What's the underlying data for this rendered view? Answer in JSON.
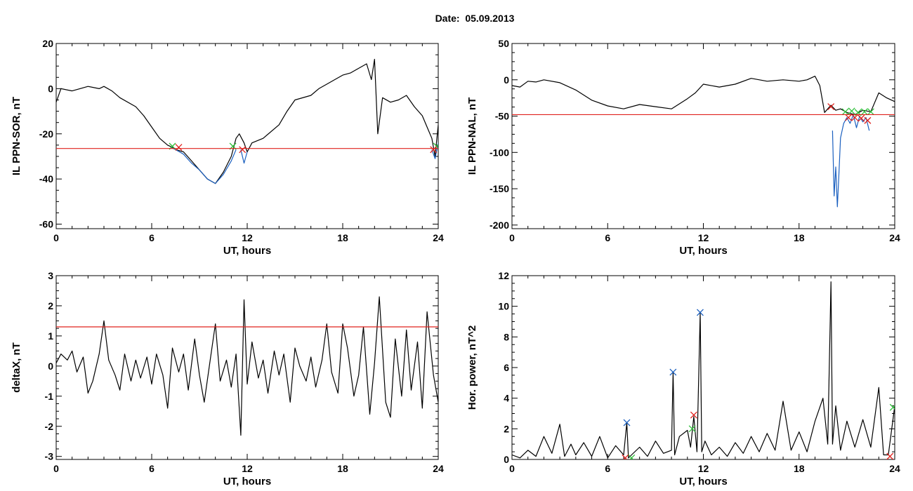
{
  "title": "Date:  05.09.2013",
  "colors": {
    "data": "#000000",
    "selected": "#1a5fbf",
    "threshold": "#e0201c",
    "marker_start": "#2fbf3a",
    "marker_end": "#e0201c",
    "peak": "#1a5fbf"
  },
  "chart_data": [
    {
      "type": "line",
      "xlabel": "UT, hours",
      "ylabel": "IL PPN-SOR, nT",
      "xlim": [
        0,
        24
      ],
      "ylim": [
        -62,
        20
      ],
      "xticks": [
        0,
        6,
        12,
        18,
        24
      ],
      "xtick_labels": [
        "0",
        "6",
        "12",
        "18",
        "24"
      ],
      "yticks": [
        20,
        0,
        -20,
        -40,
        -60
      ],
      "ytick_labels": [
        "20",
        "0",
        "-20",
        "-40",
        "-60"
      ],
      "threshold": -26.5,
      "series": [
        {
          "color_role": "data",
          "kind": "line",
          "x": [
            0,
            0.3,
            1,
            2,
            2.7,
            3,
            3.5,
            4,
            5,
            5.5,
            6,
            6.5,
            7,
            7.3,
            7.5,
            8,
            8.5,
            9,
            9.5,
            10,
            10.5,
            11,
            11.3,
            11.5,
            11.8,
            12,
            12.3,
            13,
            14,
            14.5,
            15,
            16,
            16.5,
            17,
            17.5,
            18,
            18.5,
            19,
            19.5,
            19.8,
            20,
            20.2,
            20.5,
            21,
            21.5,
            22,
            22.5,
            23,
            23.3,
            23.6,
            23.8,
            24
          ],
          "y": [
            -6,
            0,
            -1,
            1,
            0,
            1,
            -1,
            -4,
            -8,
            -12,
            -17,
            -22,
            -25,
            -26,
            -27,
            -28,
            -32,
            -36,
            -40,
            -42,
            -37,
            -30,
            -22,
            -20,
            -24,
            -28,
            -24,
            -22,
            -16,
            -10,
            -5,
            -3,
            0,
            2,
            4,
            6,
            7,
            9,
            11,
            4,
            13,
            -20,
            -4,
            -6,
            -5,
            -3,
            -8,
            -12,
            -17,
            -22,
            -30,
            -16
          ]
        },
        {
          "color_role": "selected",
          "kind": "line",
          "x": [
            7.2,
            7.5,
            8,
            8.5,
            9,
            9.5,
            10,
            10.5,
            11,
            11.3
          ],
          "y": [
            -26,
            -27,
            -29,
            -33,
            -36,
            -40,
            -42,
            -38,
            -32,
            -27
          ]
        },
        {
          "color_role": "selected",
          "kind": "line",
          "x": [
            11.6,
            11.8,
            12
          ],
          "y": [
            -27,
            -33,
            -28
          ]
        },
        {
          "color_role": "selected",
          "kind": "line",
          "x": [
            23.6,
            23.8,
            24
          ],
          "y": [
            -27,
            -31,
            -24
          ]
        },
        {
          "color_role": "marker_start",
          "kind": "points",
          "marker": "x",
          "x": [
            7.3,
            11.1,
            23.9
          ],
          "y": [
            -25.5,
            -25.5,
            -25.5
          ]
        },
        {
          "color_role": "marker_end",
          "kind": "points",
          "marker": "x",
          "x": [
            7.7,
            11.7,
            23.7
          ],
          "y": [
            -26,
            -27,
            -27
          ]
        }
      ]
    },
    {
      "type": "line",
      "xlabel": "UT, hours",
      "ylabel": "IL PPN-NAL, nT",
      "xlim": [
        0,
        24
      ],
      "ylim": [
        -205,
        50
      ],
      "xticks": [
        0,
        6,
        12,
        18,
        24
      ],
      "xtick_labels": [
        "0",
        "6",
        "12",
        "18",
        "24"
      ],
      "yticks": [
        50,
        0,
        -50,
        -100,
        -150,
        -200
      ],
      "ytick_labels": [
        "50",
        "0",
        "-50",
        "-100",
        "-150",
        "-200"
      ],
      "threshold": -48,
      "series": [
        {
          "color_role": "data",
          "kind": "line",
          "x": [
            0,
            0.5,
            1,
            1.5,
            2,
            3,
            4,
            5,
            6,
            7,
            8,
            9,
            10,
            11,
            11.5,
            12,
            13,
            14,
            15,
            16,
            17,
            18,
            18.5,
            19,
            19.3,
            19.6,
            19.8,
            20,
            20.3,
            20.6,
            21,
            21.5,
            22,
            22.5,
            23,
            23.5,
            24
          ],
          "y": [
            -8,
            -10,
            -2,
            -3,
            0,
            -4,
            -14,
            -28,
            -36,
            -40,
            -34,
            -37,
            -40,
            -26,
            -18,
            -6,
            -10,
            -6,
            2,
            -2,
            0,
            -2,
            0,
            5,
            -8,
            -45,
            -40,
            -35,
            -42,
            -40,
            -45,
            -48,
            -42,
            -44,
            -18,
            -25,
            -30
          ]
        },
        {
          "color_role": "selected",
          "kind": "line",
          "x": [
            20.1,
            20.2,
            20.3,
            20.4,
            20.5,
            20.6,
            20.8,
            21,
            21.2,
            21.4,
            21.6,
            21.8,
            22,
            22.2,
            22.4
          ],
          "y": [
            -70,
            -160,
            -120,
            -175,
            -130,
            -80,
            -60,
            -52,
            -60,
            -48,
            -66,
            -50,
            -58,
            -52,
            -70
          ]
        },
        {
          "color_role": "marker_start",
          "kind": "points",
          "marker": "x",
          "x": [
            20.9,
            21.3,
            21.7,
            22.1,
            22.5
          ],
          "y": [
            -44,
            -43,
            -45,
            -44,
            -44
          ]
        },
        {
          "color_role": "marker_end",
          "kind": "points",
          "marker": "x",
          "x": [
            20,
            21.1,
            21.5,
            21.9,
            22.3
          ],
          "y": [
            -37,
            -52,
            -52,
            -53,
            -56
          ]
        }
      ]
    },
    {
      "type": "line",
      "xlabel": "UT, hours",
      "ylabel": "deltaX, nT",
      "xlim": [
        0,
        24
      ],
      "ylim": [
        -3.1,
        3
      ],
      "xticks": [
        0,
        6,
        12,
        18,
        24
      ],
      "xtick_labels": [
        "0",
        "6",
        "12",
        "18",
        "24"
      ],
      "yticks": [
        3,
        2,
        1,
        0,
        -1,
        -2,
        -3
      ],
      "ytick_labels": [
        "3",
        "2",
        "1",
        "0",
        "-1",
        "-2",
        "-3"
      ],
      "threshold": 1.3,
      "series": [
        {
          "color_role": "data",
          "kind": "line",
          "x": [
            0,
            0.3,
            0.7,
            1,
            1.3,
            1.7,
            2,
            2.3,
            2.7,
            3,
            3.3,
            3.7,
            4,
            4.3,
            4.7,
            5,
            5.3,
            5.7,
            6,
            6.3,
            6.7,
            7,
            7.3,
            7.7,
            8,
            8.3,
            8.7,
            9,
            9.3,
            9.7,
            10,
            10.3,
            10.7,
            11,
            11.3,
            11.6,
            11.8,
            12,
            12.3,
            12.7,
            13,
            13.3,
            13.7,
            14,
            14.3,
            14.7,
            15,
            15.3,
            15.7,
            16,
            16.3,
            16.7,
            17,
            17.3,
            17.7,
            18,
            18.3,
            18.7,
            19,
            19.3,
            19.7,
            20,
            20.3,
            20.7,
            21,
            21.3,
            21.7,
            22,
            22.3,
            22.7,
            23,
            23.3,
            23.7,
            24
          ],
          "y": [
            0.1,
            0.4,
            0.2,
            0.5,
            -0.2,
            0.3,
            -0.9,
            -0.5,
            0.4,
            1.5,
            0.2,
            -0.3,
            -0.8,
            0.4,
            -0.5,
            0.2,
            -0.4,
            0.3,
            -0.6,
            0.4,
            -0.3,
            -1.4,
            0.6,
            -0.2,
            0.4,
            -0.8,
            0.9,
            -0.3,
            -1.2,
            0.3,
            1.4,
            -0.5,
            0.2,
            -0.7,
            0.4,
            -2.3,
            2.2,
            -0.6,
            0.8,
            -0.4,
            0.2,
            -0.9,
            0.5,
            -0.3,
            0.4,
            -1.2,
            0.6,
            0.0,
            -0.5,
            0.3,
            -0.7,
            0.2,
            1.4,
            -0.2,
            -0.9,
            1.4,
            0.6,
            -1.0,
            -0.3,
            1.3,
            -1.6,
            0.1,
            2.3,
            -1.2,
            -1.7,
            0.9,
            -1.0,
            1.2,
            -0.8,
            0.8,
            -1.4,
            1.8,
            -0.3,
            -1.2
          ]
        }
      ]
    },
    {
      "type": "line",
      "xlabel": "UT, hours",
      "ylabel": "Hor. power, nT^2",
      "xlim": [
        0,
        24
      ],
      "ylim": [
        0,
        12
      ],
      "xticks": [
        0,
        6,
        12,
        18,
        24
      ],
      "xtick_labels": [
        "0",
        "6",
        "12",
        "18",
        "24"
      ],
      "yticks": [
        0,
        2,
        4,
        6,
        8,
        10,
        12
      ],
      "ytick_labels": [
        "0",
        "2",
        "4",
        "6",
        "8",
        "10",
        "12"
      ],
      "series": [
        {
          "color_role": "data",
          "kind": "line",
          "x": [
            0,
            0.5,
            1,
            1.5,
            2,
            2.5,
            3,
            3.3,
            3.7,
            4,
            4.5,
            5,
            5.5,
            6,
            6.5,
            7,
            7.2,
            7.3,
            7.5,
            8,
            8.5,
            9,
            9.5,
            10,
            10.1,
            10.2,
            10.5,
            11,
            11.2,
            11.4,
            11.6,
            11.8,
            11.9,
            12.1,
            12.5,
            13,
            13.5,
            14,
            14.5,
            15,
            15.5,
            16,
            16.5,
            17,
            17.5,
            18,
            18.5,
            19,
            19.5,
            19.8,
            20,
            20.1,
            20.3,
            20.6,
            21,
            21.5,
            22,
            22.5,
            23,
            23.3,
            23.6,
            24
          ],
          "y": [
            0.3,
            0.1,
            0.6,
            0.2,
            1.5,
            0.4,
            2.3,
            0.2,
            1.0,
            0.3,
            1.1,
            0.2,
            1.5,
            0.1,
            0.9,
            0.3,
            2.4,
            0.1,
            0.3,
            0.8,
            0.2,
            1.2,
            0.4,
            0.6,
            5.7,
            0.3,
            1.5,
            1.9,
            0.8,
            2.8,
            0.5,
            9.6,
            0.5,
            1.2,
            0.3,
            0.8,
            0.2,
            1.1,
            0.4,
            1.5,
            0.5,
            1.7,
            0.6,
            3.8,
            0.6,
            1.8,
            0.5,
            2.5,
            4.0,
            1.0,
            11.6,
            1.0,
            3.5,
            0.6,
            2.5,
            0.8,
            2.6,
            0.8,
            4.7,
            0.3,
            0.3,
            3.5
          ]
        },
        {
          "color_role": "peak",
          "kind": "points",
          "marker": "x",
          "x": [
            7.2,
            10.1,
            11.8
          ],
          "y": [
            2.4,
            5.7,
            9.6
          ]
        },
        {
          "color_role": "marker_start",
          "kind": "points",
          "marker": "x",
          "x": [
            7.5,
            11.3,
            23.9
          ],
          "y": [
            0.1,
            2.0,
            3.4
          ]
        },
        {
          "color_role": "marker_end",
          "kind": "points",
          "marker": "x",
          "x": [
            7.1,
            11.4,
            23.7
          ],
          "y": [
            0.1,
            2.9,
            0.2
          ]
        }
      ]
    }
  ]
}
